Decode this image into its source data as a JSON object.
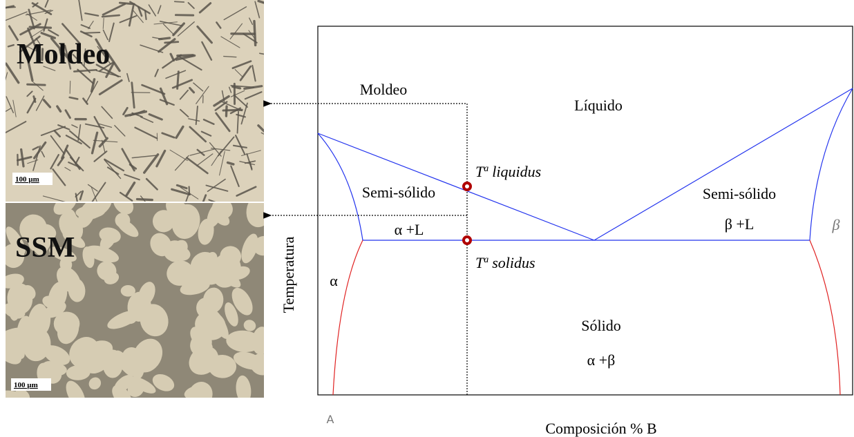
{
  "micrographs": [
    {
      "label": "Moldeo",
      "scale": "100 µm"
    },
    {
      "label": "SSM",
      "scale": "100 µm"
    }
  ],
  "diagram": {
    "y_axis_label": "Temperatura",
    "x_axis_label": "Composición % B",
    "corner_label": "A",
    "line_label": "Moldeo",
    "regions": [
      "Líquido",
      "Semi-sólido",
      "α +L",
      "α",
      "Sólido",
      "α +β",
      "Semi-sólido",
      "β +L",
      "β"
    ],
    "liquidus": {
      "symbol": "T",
      "superscript": "a",
      "name": "liquidus"
    },
    "solidus": {
      "symbol": "T",
      "superscript": "a",
      "name": "solidus"
    }
  }
}
